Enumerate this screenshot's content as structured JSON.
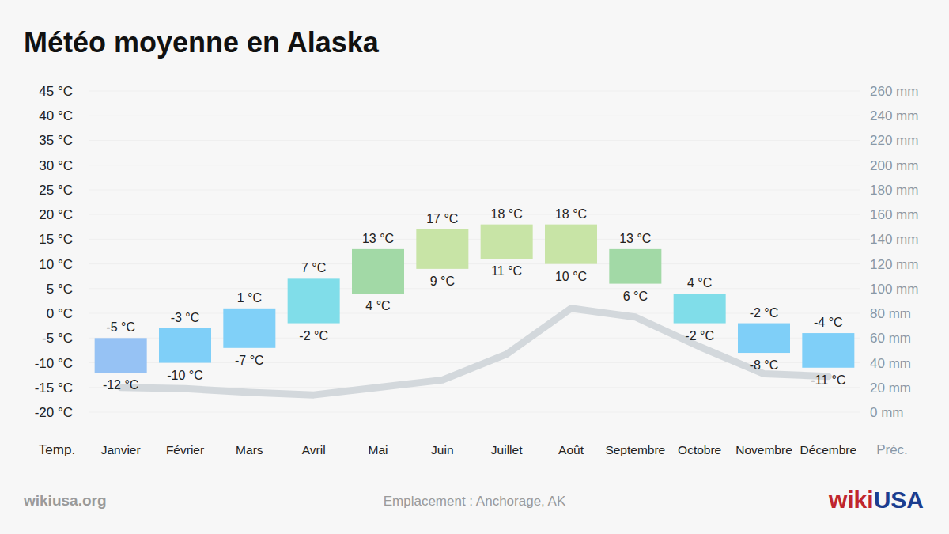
{
  "chart_data": {
    "type": "range_bar",
    "title": "Météo moyenne en Alaska",
    "ylabel": "Temp.",
    "y2label": "Préc.",
    "source": "wikiusa.org",
    "annotations": [
      "Emplacement : Anchorage, AK"
    ],
    "brand": [
      "wiki",
      "USA"
    ],
    "categories": [
      "Janvier",
      "Février",
      "Mars",
      "Avril",
      "Mai",
      "Juin",
      "Juillet",
      "Août",
      "Septembre",
      "Octobre",
      "Novembre",
      "Décembre"
    ],
    "series": [
      {
        "type": "range_bar",
        "low": [
          -12,
          -10,
          -7,
          -2,
          4,
          9,
          11,
          10,
          6,
          -2,
          -8,
          -11
        ],
        "high": [
          -5,
          -3,
          1,
          7,
          13,
          17,
          18,
          18,
          13,
          4,
          -2,
          -4
        ],
        "low_labels": [
          "-12 °C",
          "-10 °C",
          "-7 °C",
          "-2 °C",
          "4 °C",
          "9 °C",
          "11 °C",
          "10 °C",
          "6 °C",
          "-2 °C",
          "-8 °C",
          "-11 °C"
        ],
        "high_labels": [
          "-5 °C",
          "-3 °C",
          "1 °C",
          "7 °C",
          "13 °C",
          "17 °C",
          "18 °C",
          "18 °C",
          "13 °C",
          "4 °C",
          "-2 °C",
          "-4 °C"
        ],
        "colors": [
          "#96c2f4",
          "#7fcff8",
          "#80d0f8",
          "#80dde9",
          "#a2d9a6",
          "#c8e4a6",
          "#c8e4a6",
          "#c8e4a6",
          "#a2d9a6",
          "#80dde9",
          "#7fcff8",
          "#7fcff8"
        ]
      },
      {
        "type": "line",
        "axis": "y2",
        "color": "#d3d8dc",
        "values": [
          20,
          19,
          16,
          14,
          20,
          26,
          47,
          84,
          77,
          53,
          31,
          29
        ]
      }
    ],
    "ylim": [
      -20,
      45
    ],
    "yticks": [
      {
        "value": -20,
        "label": "-20 °C"
      },
      {
        "value": -15,
        "label": "-15 °C"
      },
      {
        "value": -10,
        "label": "-10 °C"
      },
      {
        "value": -5,
        "label": "-5 °C"
      },
      {
        "value": 0,
        "label": "0 °C"
      },
      {
        "value": 5,
        "label": "5 °C"
      },
      {
        "value": 10,
        "label": "10 °C"
      },
      {
        "value": 15,
        "label": "15 °C"
      },
      {
        "value": 20,
        "label": "20 °C"
      },
      {
        "value": 25,
        "label": "25 °C"
      },
      {
        "value": 30,
        "label": "30 °C"
      },
      {
        "value": 35,
        "label": "35 °C"
      },
      {
        "value": 40,
        "label": "40 °C"
      },
      {
        "value": 45,
        "label": "45 °C"
      }
    ],
    "y2lim": [
      0,
      260
    ],
    "y2ticks": [
      {
        "value": 0,
        "label": "0 mm"
      },
      {
        "value": 20,
        "label": "20 mm"
      },
      {
        "value": 40,
        "label": "40 mm"
      },
      {
        "value": 60,
        "label": "60 mm"
      },
      {
        "value": 80,
        "label": "80 mm"
      },
      {
        "value": 100,
        "label": "100 mm"
      },
      {
        "value": 120,
        "label": "120 mm"
      },
      {
        "value": 140,
        "label": "140 mm"
      },
      {
        "value": 160,
        "label": "160 mm"
      },
      {
        "value": 180,
        "label": "180 mm"
      },
      {
        "value": 200,
        "label": "200 mm"
      },
      {
        "value": 220,
        "label": "220 mm"
      },
      {
        "value": 240,
        "label": "240 mm"
      },
      {
        "value": 260,
        "label": "260 mm"
      }
    ],
    "grid": true,
    "data_labels": true
  }
}
